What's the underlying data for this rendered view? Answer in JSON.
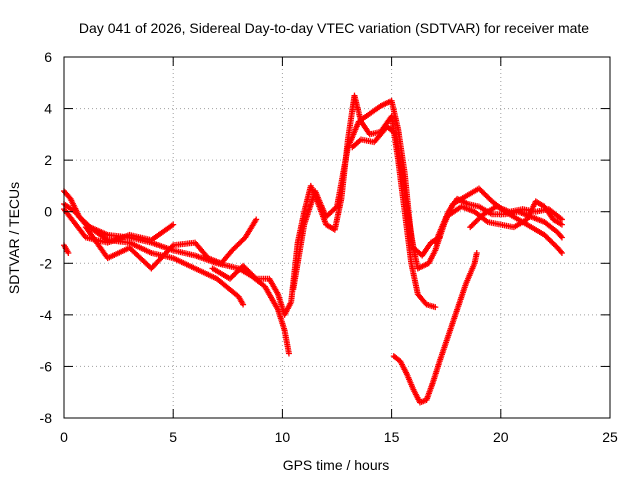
{
  "chart_data": {
    "type": "scatter",
    "title": "Day 041 of 2026, Sidereal Day-to-day VTEC variation (SDTVAR) for receiver mate",
    "xlabel": "GPS time / hours",
    "ylabel": "SDTVAR / TECUs",
    "xlim": [
      0,
      25
    ],
    "ylim": [
      -8,
      6
    ],
    "x_ticks": [
      0,
      5,
      10,
      15,
      20,
      25
    ],
    "y_ticks": [
      -8,
      -6,
      -4,
      -2,
      0,
      2,
      4,
      6
    ],
    "x_tick_labels": [
      "0",
      "5",
      "10",
      "15",
      "20",
      "25"
    ],
    "y_tick_labels": [
      "-8",
      "-6",
      "-4",
      "-2",
      "0",
      "2",
      "4",
      "6"
    ],
    "grid": true,
    "marker": "plus",
    "color": "#ff0000",
    "series": [
      {
        "name": "track-1",
        "points": [
          [
            0.0,
            0.8
          ],
          [
            0.3,
            0.5
          ],
          [
            0.7,
            -0.2
          ],
          [
            1.2,
            -0.6
          ],
          [
            2.0,
            -0.9
          ],
          [
            3.0,
            -1.0
          ],
          [
            4.0,
            -1.2
          ],
          [
            5.0,
            -1.5
          ],
          [
            6.0,
            -1.7
          ],
          [
            7.0,
            -2.0
          ],
          [
            8.0,
            -2.2
          ],
          [
            8.6,
            -2.5
          ],
          [
            9.2,
            -2.9
          ],
          [
            9.8,
            -3.8
          ],
          [
            10.1,
            -4.6
          ],
          [
            10.3,
            -5.5
          ]
        ]
      },
      {
        "name": "track-2",
        "points": [
          [
            0.0,
            0.3
          ],
          [
            0.5,
            0.0
          ],
          [
            1.0,
            -0.5
          ],
          [
            2.0,
            -1.1
          ],
          [
            3.0,
            -1.2
          ],
          [
            4.0,
            -1.6
          ],
          [
            5.0,
            -1.8
          ],
          [
            6.0,
            -2.2
          ],
          [
            7.0,
            -2.6
          ],
          [
            8.0,
            -3.3
          ],
          [
            8.2,
            -3.6
          ]
        ]
      },
      {
        "name": "track-3",
        "points": [
          [
            0.0,
            -1.3
          ],
          [
            0.2,
            -1.6
          ]
        ]
      },
      {
        "name": "track-4",
        "points": [
          [
            0.0,
            0.1
          ],
          [
            1.0,
            -1.0
          ],
          [
            2.0,
            -1.2
          ],
          [
            3.0,
            -0.9
          ],
          [
            4.0,
            -1.1
          ],
          [
            5.0,
            -0.5
          ]
        ]
      },
      {
        "name": "track-5",
        "points": [
          [
            1.0,
            -0.6
          ],
          [
            2.0,
            -1.8
          ],
          [
            3.0,
            -1.4
          ],
          [
            4.0,
            -2.2
          ],
          [
            5.0,
            -1.3
          ],
          [
            6.0,
            -1.2
          ],
          [
            6.6,
            -1.8
          ],
          [
            7.2,
            -2.0
          ],
          [
            7.7,
            -1.5
          ],
          [
            8.3,
            -1.0
          ],
          [
            8.8,
            -0.3
          ]
        ]
      },
      {
        "name": "track-6",
        "points": [
          [
            6.8,
            -2.2
          ],
          [
            7.6,
            -2.6
          ],
          [
            8.2,
            -2.1
          ],
          [
            8.8,
            -2.6
          ],
          [
            9.4,
            -2.6
          ],
          [
            9.8,
            -3.2
          ],
          [
            10.1,
            -4.0
          ],
          [
            10.4,
            -3.5
          ],
          [
            10.7,
            -1.2
          ],
          [
            11.0,
            0.0
          ],
          [
            11.3,
            1.0
          ],
          [
            11.6,
            0.4
          ],
          [
            12.0,
            -0.5
          ],
          [
            12.4,
            -0.7
          ],
          [
            12.7,
            0.5
          ],
          [
            13.0,
            2.8
          ],
          [
            13.3,
            4.5
          ],
          [
            13.6,
            3.5
          ],
          [
            14.0,
            3.0
          ],
          [
            14.5,
            3.1
          ],
          [
            15.0,
            3.7
          ],
          [
            15.3,
            2.0
          ],
          [
            15.6,
            0.0
          ],
          [
            15.9,
            -2.0
          ],
          [
            16.2,
            -3.2
          ],
          [
            16.6,
            -3.6
          ],
          [
            17.0,
            -3.7
          ]
        ]
      },
      {
        "name": "track-7",
        "points": [
          [
            10.5,
            -3.0
          ],
          [
            11.0,
            -0.5
          ],
          [
            11.5,
            0.8
          ],
          [
            12.0,
            -0.2
          ],
          [
            12.5,
            0.2
          ],
          [
            13.0,
            2.5
          ],
          [
            13.5,
            3.5
          ],
          [
            14.0,
            3.8
          ],
          [
            14.5,
            4.1
          ],
          [
            15.0,
            4.3
          ],
          [
            15.3,
            3.2
          ],
          [
            15.6,
            1.5
          ],
          [
            15.9,
            -1.0
          ],
          [
            16.2,
            -2.2
          ],
          [
            16.7,
            -2.0
          ],
          [
            17.0,
            -1.5
          ],
          [
            17.4,
            -0.5
          ],
          [
            17.8,
            0.3
          ],
          [
            18.4,
            0.6
          ],
          [
            19.0,
            0.9
          ],
          [
            19.6,
            0.4
          ],
          [
            20.2,
            0.0
          ],
          [
            20.8,
            -0.3
          ],
          [
            21.4,
            -0.6
          ],
          [
            22.0,
            -0.9
          ],
          [
            22.6,
            -1.4
          ],
          [
            22.8,
            -1.6
          ]
        ]
      },
      {
        "name": "track-8",
        "points": [
          [
            13.2,
            2.5
          ],
          [
            13.6,
            2.8
          ],
          [
            14.2,
            2.7
          ],
          [
            14.8,
            3.3
          ],
          [
            15.2,
            3.0
          ],
          [
            15.6,
            0.7
          ],
          [
            16.0,
            -1.4
          ],
          [
            16.4,
            -1.7
          ],
          [
            16.8,
            -1.2
          ],
          [
            17.2,
            -1.0
          ]
        ]
      },
      {
        "name": "track-9",
        "points": [
          [
            17.0,
            -1.2
          ],
          [
            17.6,
            0.0
          ],
          [
            18.0,
            0.5
          ],
          [
            18.5,
            0.3
          ],
          [
            19.0,
            0.2
          ],
          [
            19.6,
            -0.1
          ],
          [
            20.2,
            -0.1
          ],
          [
            20.8,
            0.0
          ],
          [
            21.4,
            -0.2
          ],
          [
            22.0,
            -0.4
          ],
          [
            22.6,
            -0.8
          ],
          [
            22.8,
            -1.0
          ]
        ]
      },
      {
        "name": "track-10",
        "points": [
          [
            17.5,
            -0.2
          ],
          [
            18.2,
            0.2
          ],
          [
            18.8,
            0.0
          ],
          [
            19.4,
            -0.4
          ],
          [
            20.0,
            -0.5
          ],
          [
            20.6,
            -0.6
          ],
          [
            21.2,
            -0.3
          ],
          [
            21.6,
            0.4
          ],
          [
            22.0,
            0.2
          ],
          [
            22.4,
            -0.3
          ],
          [
            22.8,
            -0.5
          ]
        ]
      },
      {
        "name": "track-11",
        "points": [
          [
            18.6,
            -0.6
          ],
          [
            19.2,
            -0.1
          ],
          [
            19.8,
            0.2
          ],
          [
            20.4,
            0.0
          ],
          [
            21.0,
            0.1
          ],
          [
            21.6,
            0.0
          ],
          [
            22.2,
            0.1
          ],
          [
            22.8,
            -0.3
          ]
        ]
      },
      {
        "name": "track-12",
        "points": [
          [
            15.1,
            -5.6
          ],
          [
            15.4,
            -5.8
          ],
          [
            15.7,
            -6.3
          ],
          [
            16.0,
            -6.9
          ],
          [
            16.3,
            -7.4
          ],
          [
            16.6,
            -7.3
          ],
          [
            16.9,
            -6.6
          ],
          [
            17.2,
            -5.8
          ],
          [
            17.6,
            -4.8
          ],
          [
            18.0,
            -3.8
          ],
          [
            18.4,
            -2.8
          ],
          [
            18.8,
            -2.0
          ],
          [
            18.9,
            -1.6
          ]
        ]
      }
    ]
  }
}
